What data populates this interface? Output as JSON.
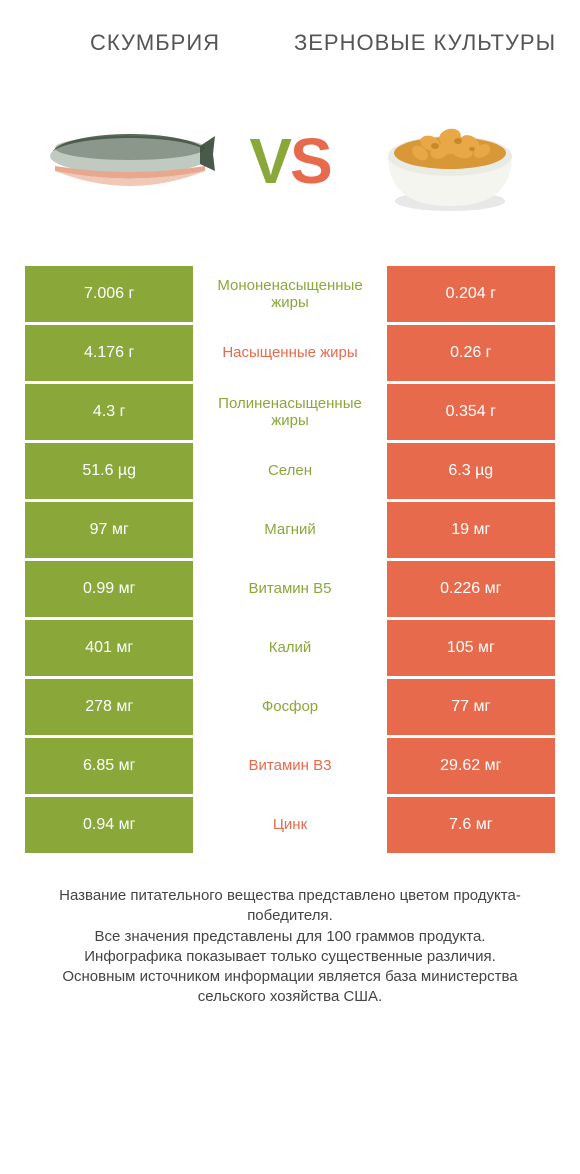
{
  "header": {
    "left": "Скумбрия",
    "right": "Зерновые культуры"
  },
  "vs": {
    "v_color": "#8aa83a",
    "s_color": "#e86a4d"
  },
  "colors": {
    "left_bg": "#8aa83a",
    "right_bg": "#e86a4d",
    "nutrient_green": "#8aa83a",
    "nutrient_red": "#e86a4d"
  },
  "rows": [
    {
      "left": "7.006 г",
      "label": "Мононенасыщенные жиры",
      "right": "0.204 г",
      "winner": "left"
    },
    {
      "left": "4.176 г",
      "label": "Насыщенные жиры",
      "right": "0.26 г",
      "winner": "right"
    },
    {
      "left": "4.3 г",
      "label": "Полиненасыщенные жиры",
      "right": "0.354 г",
      "winner": "left"
    },
    {
      "left": "51.6 µg",
      "label": "Селен",
      "right": "6.3 µg",
      "winner": "left"
    },
    {
      "left": "97 мг",
      "label": "Магний",
      "right": "19 мг",
      "winner": "left"
    },
    {
      "left": "0.99 мг",
      "label": "Витамин B5",
      "right": "0.226 мг",
      "winner": "left"
    },
    {
      "left": "401 мг",
      "label": "Калий",
      "right": "105 мг",
      "winner": "left"
    },
    {
      "left": "278 мг",
      "label": "Фосфор",
      "right": "77 мг",
      "winner": "left"
    },
    {
      "left": "6.85 мг",
      "label": "Витамин B3",
      "right": "29.62 мг",
      "winner": "right"
    },
    {
      "left": "0.94 мг",
      "label": "Цинк",
      "right": "7.6 мг",
      "winner": "right"
    }
  ],
  "footer": {
    "line1": "Название питательного вещества представлено цветом продукта-победителя.",
    "line2": "Все значения представлены для 100 граммов продукта.",
    "line3": "Инфографика показывает только существенные различия.",
    "line4": "Основным источником информации является база министерства сельского хозяйства США."
  }
}
